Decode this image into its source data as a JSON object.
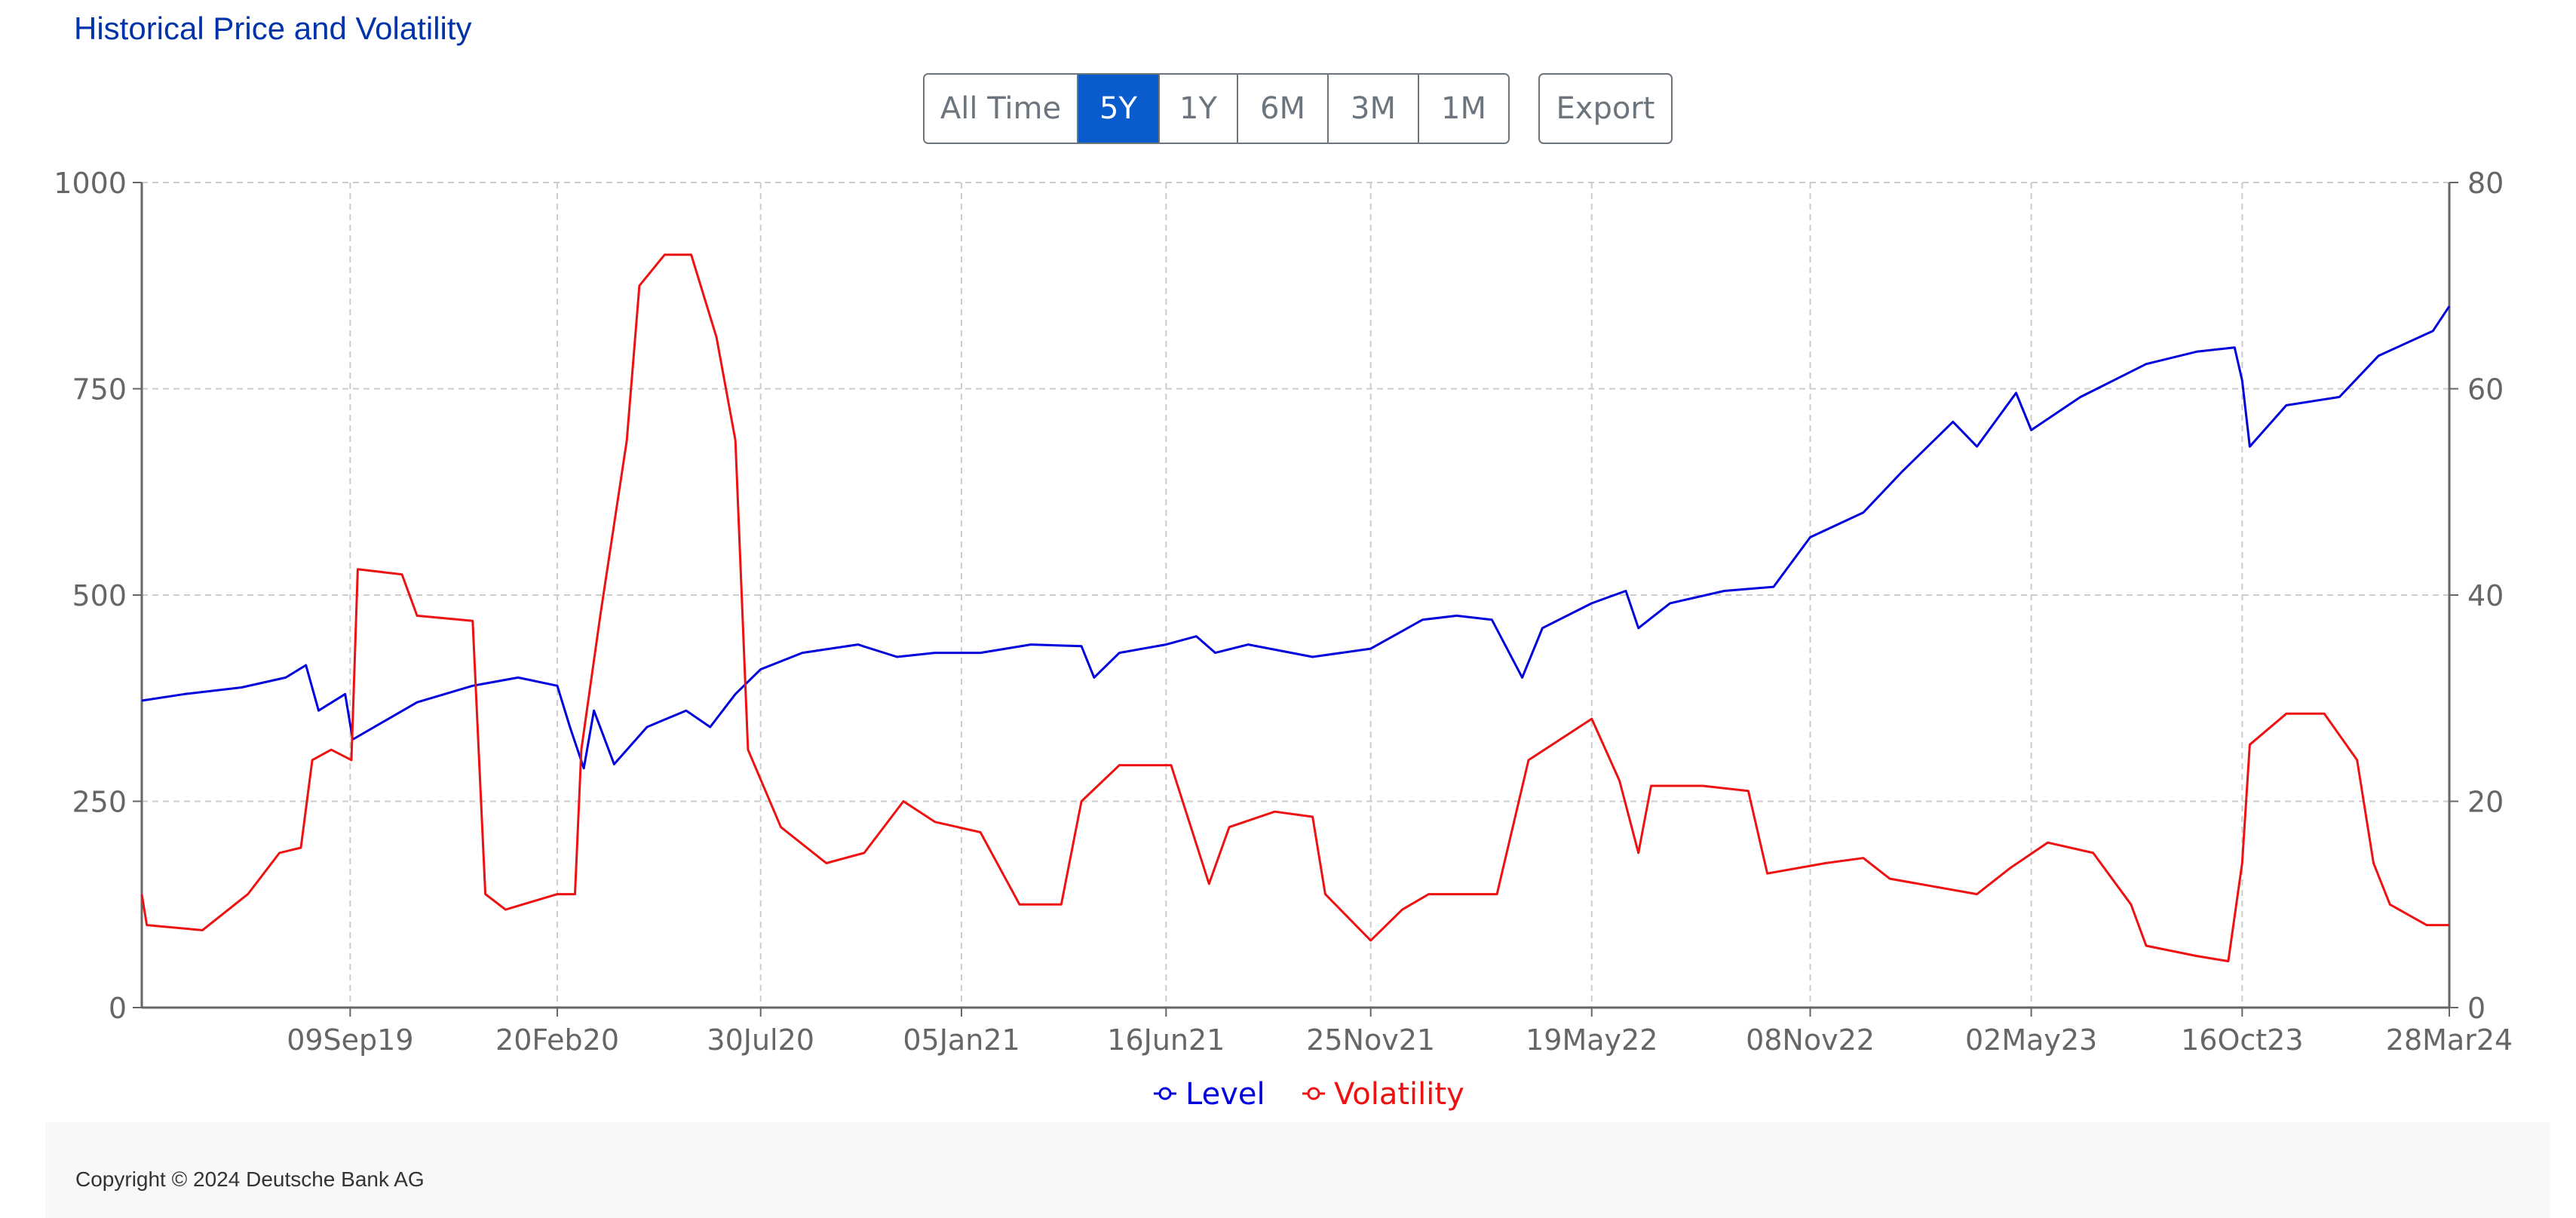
{
  "header": {
    "title": "Historical Price and Volatility"
  },
  "range_buttons": [
    {
      "label": "All Time",
      "active": false
    },
    {
      "label": "5Y",
      "active": true
    },
    {
      "label": "1Y",
      "active": false
    },
    {
      "label": "6M",
      "active": false
    },
    {
      "label": "3M",
      "active": false
    },
    {
      "label": "1M",
      "active": false
    }
  ],
  "export_label": "Export",
  "colors": {
    "level": "#0000dd",
    "volatility": "#ee1111",
    "grid": "#cccccc",
    "axis": "#666666"
  },
  "chart_data": {
    "type": "line",
    "x_range": [
      "28Mar19",
      "28Mar24"
    ],
    "x_ticks": [
      {
        "date": "2019-09-09",
        "label": "09Sep19"
      },
      {
        "date": "2020-02-20",
        "label": "20Feb20"
      },
      {
        "date": "2020-07-30",
        "label": "30Jul20"
      },
      {
        "date": "2021-01-05",
        "label": "05Jan21"
      },
      {
        "date": "2021-06-16",
        "label": "16Jun21"
      },
      {
        "date": "2021-11-25",
        "label": "25Nov21"
      },
      {
        "date": "2022-05-19",
        "label": "19May22"
      },
      {
        "date": "2022-11-08",
        "label": "08Nov22"
      },
      {
        "date": "2023-05-02",
        "label": "02May23"
      },
      {
        "date": "2023-10-16",
        "label": "16Oct23"
      },
      {
        "date": "2024-03-28",
        "label": "28Mar24"
      }
    ],
    "y_left": {
      "min": 0,
      "max": 1000,
      "ticks": [
        "0",
        "250",
        "500",
        "750",
        "1000"
      ]
    },
    "y_right": {
      "min": 0,
      "max": 80,
      "ticks": [
        "0",
        "20",
        "40",
        "60",
        "80"
      ]
    },
    "grid": true,
    "legend_position": "bottom",
    "series": [
      {
        "name": "Level",
        "axis": "left",
        "points": [
          [
            "2019-03-28",
            372
          ],
          [
            "2019-05-01",
            380
          ],
          [
            "2019-06-15",
            388
          ],
          [
            "2019-07-20",
            400
          ],
          [
            "2019-08-05",
            415
          ],
          [
            "2019-08-15",
            360
          ],
          [
            "2019-09-05",
            380
          ],
          [
            "2019-09-11",
            325
          ],
          [
            "2019-11-01",
            370
          ],
          [
            "2019-12-15",
            390
          ],
          [
            "2020-01-20",
            400
          ],
          [
            "2020-02-20",
            390
          ],
          [
            "2020-03-01",
            340
          ],
          [
            "2020-03-12",
            290
          ],
          [
            "2020-03-20",
            360
          ],
          [
            "2020-04-05",
            295
          ],
          [
            "2020-05-01",
            340
          ],
          [
            "2020-06-01",
            360
          ],
          [
            "2020-06-20",
            340
          ],
          [
            "2020-07-10",
            380
          ],
          [
            "2020-07-30",
            410
          ],
          [
            "2020-09-01",
            430
          ],
          [
            "2020-10-15",
            440
          ],
          [
            "2020-11-15",
            425
          ],
          [
            "2020-12-15",
            430
          ],
          [
            "2021-01-20",
            430
          ],
          [
            "2021-03-01",
            440
          ],
          [
            "2021-04-10",
            438
          ],
          [
            "2021-04-20",
            400
          ],
          [
            "2021-05-10",
            430
          ],
          [
            "2021-06-16",
            440
          ],
          [
            "2021-07-10",
            450
          ],
          [
            "2021-07-25",
            430
          ],
          [
            "2021-08-20",
            440
          ],
          [
            "2021-10-10",
            425
          ],
          [
            "2021-11-25",
            435
          ],
          [
            "2022-01-05",
            470
          ],
          [
            "2022-02-01",
            475
          ],
          [
            "2022-03-01",
            470
          ],
          [
            "2022-03-25",
            400
          ],
          [
            "2022-04-10",
            460
          ],
          [
            "2022-05-19",
            490
          ],
          [
            "2022-06-15",
            505
          ],
          [
            "2022-06-25",
            460
          ],
          [
            "2022-07-20",
            490
          ],
          [
            "2022-09-01",
            505
          ],
          [
            "2022-10-10",
            510
          ],
          [
            "2022-11-08",
            570
          ],
          [
            "2022-12-20",
            600
          ],
          [
            "2023-01-20",
            650
          ],
          [
            "2023-03-01",
            710
          ],
          [
            "2023-03-20",
            680
          ],
          [
            "2023-04-20",
            745
          ],
          [
            "2023-05-02",
            700
          ],
          [
            "2023-06-10",
            740
          ],
          [
            "2023-08-01",
            780
          ],
          [
            "2023-09-10",
            795
          ],
          [
            "2023-10-10",
            800
          ],
          [
            "2023-10-16",
            760
          ],
          [
            "2023-10-22",
            680
          ],
          [
            "2023-11-20",
            730
          ],
          [
            "2024-01-01",
            740
          ],
          [
            "2024-02-01",
            790
          ],
          [
            "2024-03-15",
            820
          ],
          [
            "2024-03-28",
            850
          ]
        ]
      },
      {
        "name": "Volatility",
        "axis": "right",
        "points": [
          [
            "2019-03-28",
            11
          ],
          [
            "2019-04-01",
            8
          ],
          [
            "2019-05-15",
            7.5
          ],
          [
            "2019-06-20",
            11
          ],
          [
            "2019-07-15",
            15
          ],
          [
            "2019-08-01",
            15.5
          ],
          [
            "2019-08-10",
            24
          ],
          [
            "2019-08-25",
            25
          ],
          [
            "2019-09-10",
            24
          ],
          [
            "2019-09-15",
            42.5
          ],
          [
            "2019-10-20",
            42
          ],
          [
            "2019-11-01",
            38
          ],
          [
            "2019-12-15",
            37.5
          ],
          [
            "2019-12-25",
            11
          ],
          [
            "2020-01-10",
            9.5
          ],
          [
            "2020-02-20",
            11
          ],
          [
            "2020-03-05",
            11
          ],
          [
            "2020-03-10",
            25
          ],
          [
            "2020-03-25",
            38
          ],
          [
            "2020-04-15",
            55
          ],
          [
            "2020-04-25",
            70
          ],
          [
            "2020-05-15",
            73
          ],
          [
            "2020-06-05",
            73
          ],
          [
            "2020-06-25",
            65
          ],
          [
            "2020-07-10",
            55
          ],
          [
            "2020-07-20",
            25
          ],
          [
            "2020-08-15",
            17.5
          ],
          [
            "2020-09-20",
            14
          ],
          [
            "2020-10-20",
            15
          ],
          [
            "2020-11-20",
            20
          ],
          [
            "2020-12-15",
            18
          ],
          [
            "2021-01-20",
            17
          ],
          [
            "2021-02-20",
            10
          ],
          [
            "2021-03-25",
            10
          ],
          [
            "2021-04-10",
            20
          ],
          [
            "2021-05-10",
            23.5
          ],
          [
            "2021-06-20",
            23.5
          ],
          [
            "2021-07-20",
            12
          ],
          [
            "2021-08-05",
            17.5
          ],
          [
            "2021-09-10",
            19
          ],
          [
            "2021-10-10",
            18.5
          ],
          [
            "2021-10-20",
            11
          ],
          [
            "2021-11-25",
            6.5
          ],
          [
            "2021-12-20",
            9.5
          ],
          [
            "2022-01-10",
            11
          ],
          [
            "2022-03-05",
            11
          ],
          [
            "2022-03-30",
            24
          ],
          [
            "2022-05-19",
            28
          ],
          [
            "2022-06-10",
            22
          ],
          [
            "2022-06-25",
            15
          ],
          [
            "2022-07-05",
            21.5
          ],
          [
            "2022-08-15",
            21.5
          ],
          [
            "2022-09-20",
            21
          ],
          [
            "2022-10-05",
            13
          ],
          [
            "2022-11-20",
            14
          ],
          [
            "2022-12-20",
            14.5
          ],
          [
            "2023-01-10",
            12.5
          ],
          [
            "2023-03-20",
            11
          ],
          [
            "2023-04-15",
            13.5
          ],
          [
            "2023-05-15",
            16
          ],
          [
            "2023-06-20",
            15
          ],
          [
            "2023-07-20",
            10
          ],
          [
            "2023-08-01",
            6
          ],
          [
            "2023-09-10",
            5
          ],
          [
            "2023-10-05",
            4.5
          ],
          [
            "2023-10-16",
            14
          ],
          [
            "2023-10-22",
            25.5
          ],
          [
            "2023-11-20",
            28.5
          ],
          [
            "2023-12-20",
            28.5
          ],
          [
            "2024-01-15",
            24
          ],
          [
            "2024-01-28",
            14
          ],
          [
            "2024-02-10",
            10
          ],
          [
            "2024-03-10",
            8
          ],
          [
            "2024-03-28",
            8
          ]
        ]
      }
    ]
  }
}
